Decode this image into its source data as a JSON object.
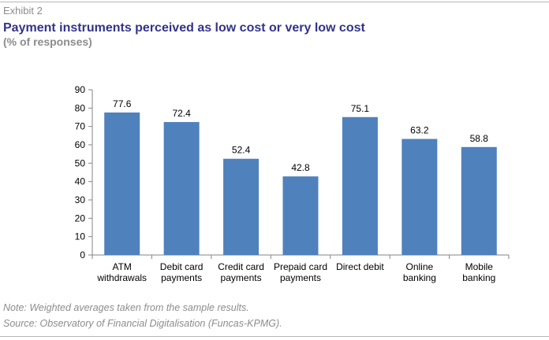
{
  "header": {
    "exhibit": "Exhibit 2",
    "title": "Payment instruments perceived as low cost or very low cost",
    "subtitle": "(% of responses)"
  },
  "footer": {
    "note": "Note: Weighted averages taken from the sample results.",
    "source": "Source: Observatory of Financial Digitalisation (Funcas-KPMG)."
  },
  "colors": {
    "bar": "#4f81bd",
    "axis": "#868686",
    "title": "#33338a",
    "muted": "#8c8c8c"
  },
  "chart_data": {
    "type": "bar",
    "categories": [
      [
        "ATM",
        "withdrawals"
      ],
      [
        "Debit card",
        "payments"
      ],
      [
        "Credit card",
        "payments"
      ],
      [
        "Prepaid card",
        "payments"
      ],
      [
        "Direct debit"
      ],
      [
        "Online",
        "banking"
      ],
      [
        "Mobile",
        "banking"
      ]
    ],
    "values": [
      77.6,
      72.4,
      52.4,
      42.8,
      75.1,
      63.2,
      58.8
    ],
    "value_labels": [
      "77.6",
      "72.4",
      "52.4",
      "42.8",
      "75.1",
      "63.2",
      "58.8"
    ],
    "ylim": [
      0,
      90
    ],
    "yticks": [
      0,
      10,
      20,
      30,
      40,
      50,
      60,
      70,
      80,
      90
    ],
    "grid": false,
    "legend": "none"
  }
}
